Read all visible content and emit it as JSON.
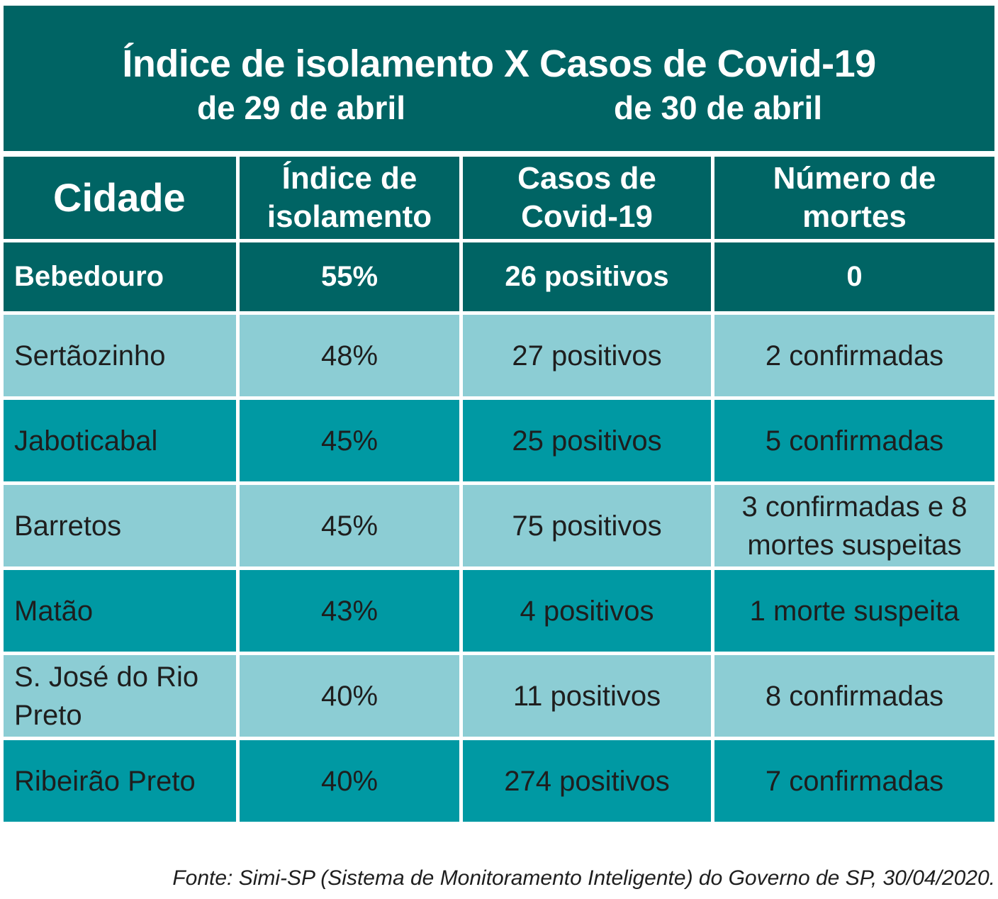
{
  "title": {
    "main": "Índice de isolamento X Casos de Covid-19",
    "sub_left": "de 29 de abril",
    "sub_right": "de 30 de abril"
  },
  "chart_data": {
    "type": "table",
    "columns": [
      "Cidade",
      "Índice de isolamento",
      "Casos de Covid-19",
      "Número de mortes"
    ],
    "header_lines": [
      [
        "Cidade"
      ],
      [
        "Índice de",
        "isolamento"
      ],
      [
        "Casos de",
        "Covid-19"
      ],
      [
        "Número de",
        "mortes"
      ]
    ],
    "rows": [
      {
        "city": "Bebedouro",
        "isolation": "55%",
        "cases": "26 positivos",
        "deaths": "0"
      },
      {
        "city": "Sertãozinho",
        "isolation": "48%",
        "cases": "27 positivos",
        "deaths": "2 confirmadas"
      },
      {
        "city": "Jaboticabal",
        "isolation": "45%",
        "cases": "25 positivos",
        "deaths": "5 confirmadas"
      },
      {
        "city": "Barretos",
        "isolation": "45%",
        "cases": "75 positivos",
        "deaths": "3 confirmadas e 8 mortes suspeitas"
      },
      {
        "city": "Matão",
        "isolation": "43%",
        "cases": "4 positivos",
        "deaths": "1 morte suspeita"
      },
      {
        "city": "S. José do Rio Preto",
        "isolation": "40%",
        "cases": "11 positivos",
        "deaths": "8 confirmadas"
      },
      {
        "city": "Ribeirão Preto",
        "isolation": "40%",
        "cases": "274 positivos",
        "deaths": "7 confirmadas"
      }
    ],
    "values": {
      "isolation_percent": [
        55,
        48,
        45,
        45,
        43,
        40,
        40
      ],
      "cases": [
        26,
        27,
        25,
        75,
        4,
        11,
        274
      ]
    }
  },
  "source": "Fonte: Simi-SP (Sistema de Monitoramento Inteligente) do Governo de SP, 30/04/2020.",
  "colors": {
    "header": "#006464",
    "row_light": "#8ccdd4",
    "row_dark": "#0099a3",
    "header_text": "#ffffff",
    "body_text": "#1e1e1e"
  }
}
